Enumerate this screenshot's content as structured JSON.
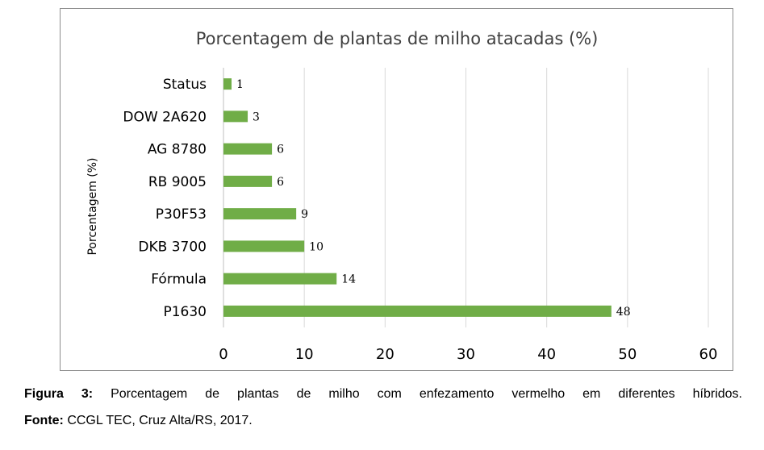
{
  "chart_data": {
    "type": "bar",
    "orientation": "horizontal",
    "title": "Porcentagem de plantas de milho atacadas (%)",
    "xlabel": "",
    "ylabel": "Porcentagem (%)",
    "categories": [
      "Status",
      "DOW 2A620",
      "AG 8780",
      "RB 9005",
      "P30F53",
      "DKB 3700",
      "Fórmula",
      "P1630"
    ],
    "values": [
      1,
      3,
      6,
      6,
      9,
      10,
      14,
      48
    ],
    "xlim": [
      0,
      60
    ],
    "xticks": [
      0,
      10,
      20,
      30,
      40,
      50,
      60
    ],
    "grid": true,
    "data_labels": true,
    "legend": "none",
    "bar_color": "#70ad47"
  },
  "caption": {
    "label": "Figura 3:",
    "text": " Porcentagem de plantas de milho com enfezamento vermelho em diferentes híbridos."
  },
  "source": {
    "label": "Fonte:",
    "text": " CCGL TEC, Cruz Alta/RS, 2017."
  }
}
